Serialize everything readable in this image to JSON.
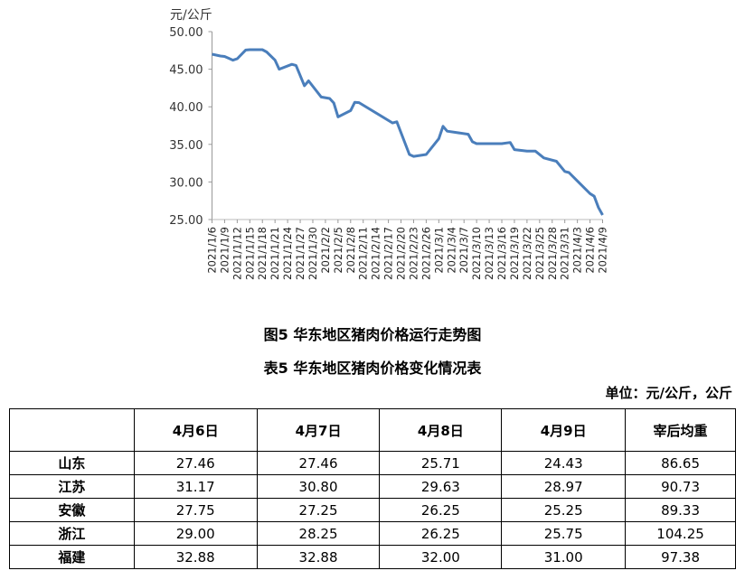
{
  "chart_data": {
    "type": "line",
    "title": "图5 华东地区猪肉价格运行走势图",
    "ylabel": "元/公斤",
    "ylim": [
      25,
      50
    ],
    "yticks": [
      "50.00",
      "45.00",
      "40.00",
      "35.00",
      "30.00",
      "25.00"
    ],
    "xlim": [
      "2021-01-06",
      "2021-04-09"
    ],
    "xticks": [
      "2021/1/6",
      "2021/1/9",
      "2021/1/12",
      "2021/1/15",
      "2021/1/18",
      "2021/1/21",
      "2021/1/24",
      "2021/1/27",
      "2021/1/30",
      "2021/2/2",
      "2021/2/5",
      "2021/2/8",
      "2021/2/11",
      "2021/2/14",
      "2021/2/17",
      "2021/2/20",
      "2021/2/23",
      "2021/2/26",
      "2021/3/1",
      "2021/3/4",
      "2021/3/7",
      "2021/3/10",
      "2021/3/13",
      "2021/3/16",
      "2021/3/19",
      "2021/3/22",
      "2021/3/25",
      "2021/3/28",
      "2021/3/31",
      "2021/4/3",
      "2021/4/6",
      "2021/4/9"
    ],
    "grid": false,
    "color": "#4a7ebb",
    "x": [
      "2021-01-06",
      "2021-01-08",
      "2021-01-09",
      "2021-01-11",
      "2021-01-12",
      "2021-01-14",
      "2021-01-15",
      "2021-01-18",
      "2021-01-19",
      "2021-01-21",
      "2021-01-22",
      "2021-01-25",
      "2021-01-26",
      "2021-01-28",
      "2021-01-29",
      "2021-02-01",
      "2021-02-03",
      "2021-02-04",
      "2021-02-05",
      "2021-02-08",
      "2021-02-09",
      "2021-02-10",
      "2021-02-18",
      "2021-02-19",
      "2021-02-22",
      "2021-02-23",
      "2021-02-26",
      "2021-03-01",
      "2021-03-02",
      "2021-03-03",
      "2021-03-08",
      "2021-03-09",
      "2021-03-10",
      "2021-03-16",
      "2021-03-18",
      "2021-03-19",
      "2021-03-22",
      "2021-03-24",
      "2021-03-26",
      "2021-03-29",
      "2021-03-31",
      "2021-04-01",
      "2021-04-06",
      "2021-04-07",
      "2021-04-08",
      "2021-04-09"
    ],
    "y": [
      47.0,
      46.75,
      46.7,
      46.2,
      46.4,
      47.55,
      47.6,
      47.6,
      47.3,
      46.2,
      45.0,
      45.65,
      45.5,
      42.8,
      43.45,
      41.3,
      41.1,
      40.5,
      38.65,
      39.5,
      40.6,
      40.55,
      37.85,
      38.0,
      33.65,
      33.4,
      33.65,
      35.75,
      37.4,
      36.75,
      36.35,
      35.35,
      35.1,
      35.1,
      35.25,
      34.3,
      34.1,
      34.1,
      33.2,
      32.75,
      31.4,
      31.25,
      28.45,
      28.1,
      26.6,
      25.6
    ]
  },
  "table": {
    "title": "表5 华东地区猪肉价格变化情况表",
    "unit": "单位：元/公斤，公斤",
    "headers": [
      "",
      "4月6日",
      "4月7日",
      "4月8日",
      "4月9日",
      "宰后均重"
    ],
    "rows": [
      [
        "山东",
        "27.46",
        "27.46",
        "25.71",
        "24.43",
        "86.65"
      ],
      [
        "江苏",
        "31.17",
        "30.80",
        "29.63",
        "28.97",
        "90.73"
      ],
      [
        "安徽",
        "27.75",
        "27.25",
        "26.25",
        "25.25",
        "89.33"
      ],
      [
        "浙江",
        "29.00",
        "28.25",
        "26.25",
        "25.75",
        "104.25"
      ],
      [
        "福建",
        "32.88",
        "32.88",
        "32.00",
        "31.00",
        "97.38"
      ]
    ]
  }
}
